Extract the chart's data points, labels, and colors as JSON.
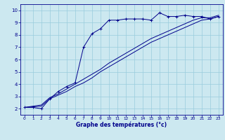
{
  "xlabel": "Graphe des températures (°c)",
  "background_color": "#cce8f0",
  "line_color": "#00008b",
  "grid_color": "#99ccdd",
  "xlim": [
    -0.5,
    23.5
  ],
  "ylim": [
    1.5,
    10.5
  ],
  "xticks": [
    0,
    1,
    2,
    3,
    4,
    5,
    6,
    7,
    8,
    9,
    10,
    11,
    12,
    13,
    14,
    15,
    16,
    17,
    18,
    19,
    20,
    21,
    22,
    23
  ],
  "yticks": [
    2,
    3,
    4,
    5,
    6,
    7,
    8,
    9,
    10
  ],
  "line1_x": [
    0,
    1,
    2,
    3,
    4,
    5,
    6,
    7,
    8,
    9,
    10,
    11,
    12,
    13,
    14,
    15,
    16,
    17,
    18,
    19,
    20,
    21,
    22,
    23
  ],
  "line1_y": [
    2.1,
    2.1,
    2.0,
    2.8,
    3.4,
    3.8,
    4.1,
    7.0,
    8.1,
    8.5,
    9.2,
    9.2,
    9.3,
    9.3,
    9.3,
    9.2,
    9.8,
    9.5,
    9.5,
    9.6,
    9.5,
    9.5,
    9.3,
    9.5
  ],
  "line2_x": [
    0,
    1,
    2,
    3,
    4,
    5,
    6,
    7,
    8,
    9,
    10,
    11,
    12,
    13,
    14,
    15,
    16,
    17,
    18,
    19,
    20,
    21,
    22,
    23
  ],
  "line2_y": [
    2.1,
    2.15,
    2.2,
    2.8,
    3.1,
    3.4,
    3.8,
    4.1,
    4.5,
    5.0,
    5.4,
    5.8,
    6.2,
    6.6,
    7.0,
    7.4,
    7.7,
    8.0,
    8.3,
    8.6,
    8.9,
    9.2,
    9.3,
    9.5
  ],
  "line3_x": [
    0,
    1,
    2,
    3,
    4,
    5,
    6,
    7,
    8,
    9,
    10,
    11,
    12,
    13,
    14,
    15,
    16,
    17,
    18,
    19,
    20,
    21,
    22,
    23
  ],
  "line3_y": [
    2.1,
    2.2,
    2.3,
    2.9,
    3.2,
    3.6,
    4.0,
    4.4,
    4.8,
    5.2,
    5.7,
    6.1,
    6.5,
    6.9,
    7.3,
    7.7,
    8.0,
    8.3,
    8.6,
    8.9,
    9.2,
    9.4,
    9.4,
    9.6
  ],
  "xlabel_fontsize": 5.5,
  "tick_fontsize_x": 4.2,
  "tick_fontsize_y": 5.0
}
